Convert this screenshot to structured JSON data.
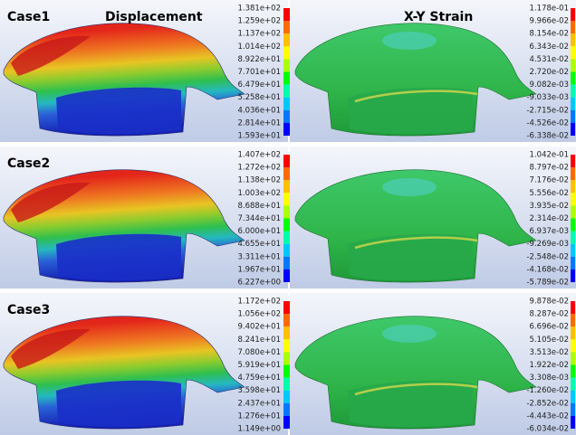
{
  "headers": {
    "displacement": "Displacement",
    "strain": "X-Y Strain"
  },
  "cases": [
    {
      "label": "Case1",
      "displacement_legend": [
        "1.381e+02",
        "1.259e+02",
        "1.137e+02",
        "1.014e+02",
        "8.922e+01",
        "7.701e+01",
        "6.479e+01",
        "5.258e+01",
        "4.036e+01",
        "2.814e+01",
        "1.593e+01"
      ],
      "strain_legend": [
        "1.178e-01",
        "9.966e-02",
        "8.154e-02",
        "6.343e-02",
        "4.531e-02",
        "2.720e-02",
        "9.082e-03",
        "-9.033e-03",
        "-2.715e-02",
        "-4.526e-02",
        "-6.338e-02"
      ]
    },
    {
      "label": "Case2",
      "displacement_legend": [
        "1.407e+02",
        "1.272e+02",
        "1.138e+02",
        "1.003e+02",
        "8.688e+01",
        "7.344e+01",
        "6.000e+01",
        "4.655e+01",
        "3.311e+01",
        "1.967e+01",
        "6.227e+00"
      ],
      "strain_legend": [
        "1.042e-01",
        "8.797e-02",
        "7.176e-02",
        "5.556e-02",
        "3.935e-02",
        "2.314e-02",
        "6.937e-03",
        "-9.269e-03",
        "-2.548e-02",
        "-4.168e-02",
        "-5.789e-02"
      ]
    },
    {
      "label": "Case3",
      "displacement_legend": [
        "1.172e+02",
        "1.056e+02",
        "9.402e+01",
        "8.241e+01",
        "7.080e+01",
        "5.919e+01",
        "4.759e+01",
        "3.598e+01",
        "2.437e+01",
        "1.276e+01",
        "1.149e+00"
      ],
      "strain_legend": [
        "9.878e-02",
        "8.287e-02",
        "6.696e-02",
        "5.105e-02",
        "3.513e-02",
        "1.922e-02",
        "3.308e-03",
        "-1.260e-02",
        "-2.852e-02",
        "-4.443e-02",
        "-6.034e-02"
      ]
    }
  ]
}
